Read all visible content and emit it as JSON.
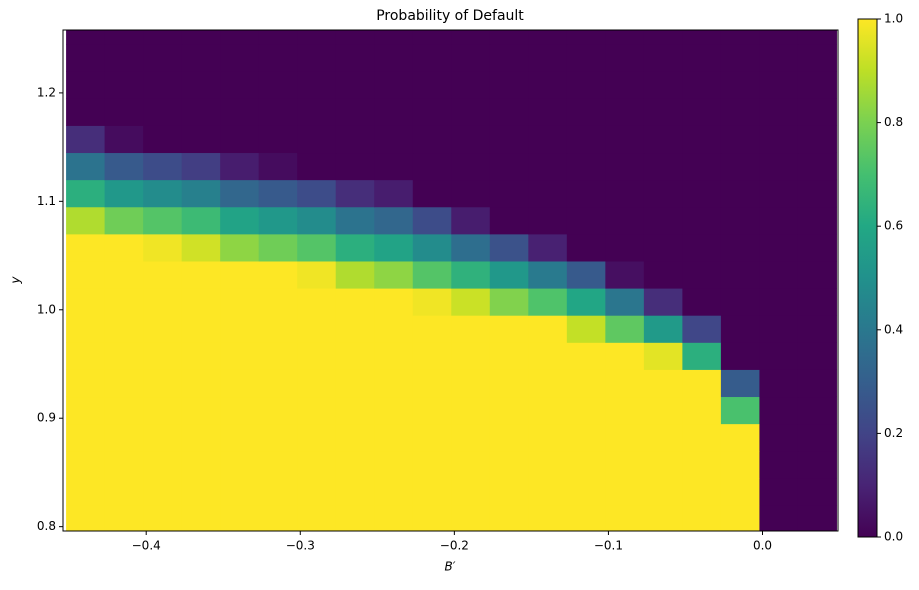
{
  "chart_data": {
    "type": "heatmap",
    "title": "Probability of Default",
    "xlabel": "B′",
    "ylabel": "y",
    "cmap": "viridis",
    "x": [
      -0.4395,
      -0.4145,
      -0.3895,
      -0.3645,
      -0.3395,
      -0.3145,
      -0.2895,
      -0.2645,
      -0.2395,
      -0.2145,
      -0.1895,
      -0.1645,
      -0.1395,
      -0.1145,
      -0.0895,
      -0.0645,
      -0.0395,
      -0.0145,
      0.0105,
      0.0355
    ],
    "y": [
      0.8075,
      0.8325,
      0.8575,
      0.8825,
      0.9075,
      0.9325,
      0.9575,
      0.9825,
      1.0075,
      1.0325,
      1.0575,
      1.0825,
      1.1075,
      1.1325,
      1.1575,
      1.1825,
      1.2075,
      1.2325,
      1.2575
    ],
    "z": [
      [
        1,
        1,
        1,
        1,
        1,
        1,
        1,
        1,
        1,
        1,
        1,
        1,
        1,
        1,
        1,
        1,
        1,
        1,
        0,
        0
      ],
      [
        1,
        1,
        1,
        1,
        1,
        1,
        1,
        1,
        1,
        1,
        1,
        1,
        1,
        1,
        1,
        1,
        1,
        1,
        0,
        0
      ],
      [
        1,
        1,
        1,
        1,
        1,
        1,
        1,
        1,
        1,
        1,
        1,
        1,
        1,
        1,
        1,
        1,
        1,
        1,
        0,
        0
      ],
      [
        1,
        1,
        1,
        1,
        1,
        1,
        1,
        1,
        1,
        1,
        1,
        1,
        1,
        1,
        1,
        1,
        1,
        1,
        0,
        0
      ],
      [
        1,
        1,
        1,
        1,
        1,
        1,
        1,
        1,
        1,
        1,
        1,
        1,
        1,
        1,
        1,
        1,
        1,
        0.71,
        0,
        0
      ],
      [
        1,
        1,
        1,
        1,
        1,
        1,
        1,
        1,
        1,
        1,
        1,
        1,
        1,
        1,
        1,
        1,
        1,
        0.29,
        0,
        0
      ],
      [
        1,
        1,
        1,
        1,
        1,
        1,
        1,
        1,
        1,
        1,
        1,
        1,
        1,
        1,
        1,
        0.96,
        0.63,
        0,
        0,
        0
      ],
      [
        1,
        1,
        1,
        1,
        1,
        1,
        1,
        1,
        1,
        1,
        1,
        1,
        1,
        0.91,
        0.75,
        0.54,
        0.21,
        0,
        0,
        0
      ],
      [
        1,
        1,
        1,
        1,
        1,
        1,
        1,
        1,
        1,
        0.98,
        0.92,
        0.81,
        0.72,
        0.59,
        0.39,
        0.13,
        0,
        0,
        0,
        0
      ],
      [
        1,
        1,
        1,
        1,
        1,
        1,
        0.98,
        0.88,
        0.83,
        0.73,
        0.64,
        0.53,
        0.41,
        0.28,
        0.04,
        0,
        0,
        0,
        0,
        0
      ],
      [
        1,
        1,
        0.98,
        0.93,
        0.83,
        0.78,
        0.73,
        0.63,
        0.58,
        0.48,
        0.36,
        0.25,
        0.09,
        0,
        0,
        0,
        0,
        0,
        0,
        0
      ],
      [
        0.88,
        0.78,
        0.73,
        0.68,
        0.58,
        0.53,
        0.48,
        0.38,
        0.33,
        0.23,
        0.08,
        0,
        0,
        0,
        0,
        0,
        0,
        0,
        0,
        0
      ],
      [
        0.63,
        0.53,
        0.48,
        0.43,
        0.33,
        0.28,
        0.23,
        0.13,
        0.08,
        0,
        0,
        0,
        0,
        0,
        0,
        0,
        0,
        0,
        0,
        0
      ],
      [
        0.38,
        0.28,
        0.23,
        0.18,
        0.08,
        0.03,
        0,
        0,
        0,
        0,
        0,
        0,
        0,
        0,
        0,
        0,
        0,
        0,
        0,
        0
      ],
      [
        0.13,
        0.03,
        0,
        0,
        0,
        0,
        0,
        0,
        0,
        0,
        0,
        0,
        0,
        0,
        0,
        0,
        0,
        0,
        0,
        0
      ],
      [
        0,
        0,
        0,
        0,
        0,
        0,
        0,
        0,
        0,
        0,
        0,
        0,
        0,
        0,
        0,
        0,
        0,
        0,
        0,
        0
      ],
      [
        0,
        0,
        0,
        0,
        0,
        0,
        0,
        0,
        0,
        0,
        0,
        0,
        0,
        0,
        0,
        0,
        0,
        0,
        0,
        0
      ],
      [
        0,
        0,
        0,
        0,
        0,
        0,
        0,
        0,
        0,
        0,
        0,
        0,
        0,
        0,
        0,
        0,
        0,
        0,
        0,
        0
      ],
      [
        0,
        0,
        0,
        0,
        0,
        0,
        0,
        0,
        0,
        0,
        0,
        0,
        0,
        0,
        0,
        0,
        0,
        0,
        0,
        0
      ]
    ],
    "xlim": [
      -0.454,
      0.049
    ],
    "ylim": [
      0.796,
      1.258
    ],
    "zlim": [
      0,
      1
    ],
    "xticks": [
      {
        "value": -0.4,
        "label": "−0.4"
      },
      {
        "value": -0.3,
        "label": "−0.3"
      },
      {
        "value": -0.2,
        "label": "−0.2"
      },
      {
        "value": -0.1,
        "label": "−0.1"
      },
      {
        "value": 0,
        "label": "0.0"
      }
    ],
    "yticks": [
      0.8,
      0.9,
      {
        "value": 1,
        "label": "1.0"
      },
      1.1,
      1.2
    ],
    "zticks": [
      {
        "value": 0,
        "label": "0.0"
      },
      0.2,
      0.4,
      0.6,
      0.8,
      {
        "value": 1,
        "label": "1.0"
      }
    ]
  }
}
